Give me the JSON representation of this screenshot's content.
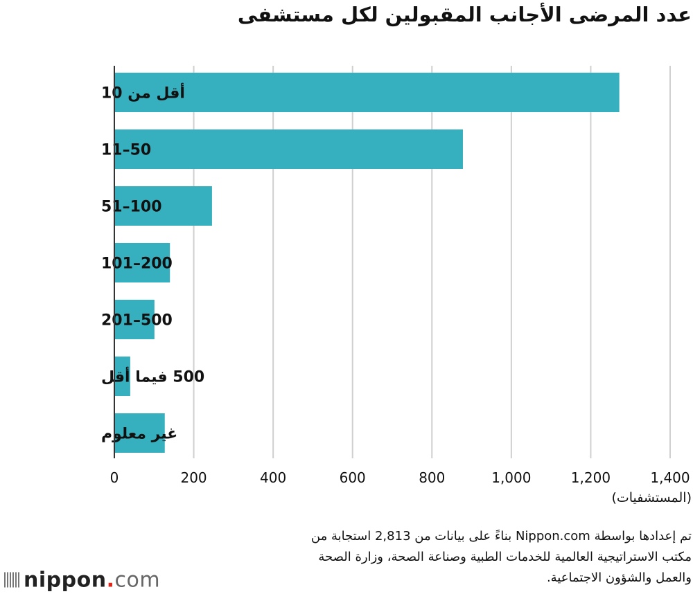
{
  "title": "عدد المرضى الأجانب المقبولين لكل مستشفى",
  "chart_data": {
    "type": "bar",
    "orientation": "horizontal",
    "categories": [
      "أقل من 10",
      "50–11",
      "100–51",
      "200–101",
      "500–201",
      "500 فيما أقل",
      "غير معلوم"
    ],
    "values": [
      1272,
      878,
      246,
      140,
      101,
      40,
      127
    ],
    "xlabel": "(المستشفيات)",
    "xlim": [
      0,
      1400
    ],
    "xticks": [
      0,
      200,
      400,
      600,
      800,
      1000,
      1200,
      1400
    ],
    "xtick_labels": [
      "0",
      "200",
      "400",
      "600",
      "800",
      "1,000",
      "1,200",
      "1,400"
    ],
    "grid": "vertical",
    "bar_color": "#36b0be"
  },
  "note_lines": [
    "تم إعدادها بواسطة Nippon.com بناءً على بيانات من 2,813 استجابة من",
    "مكتب الاستراتيجية العالمية للخدمات الطبية وصناعة الصحة، وزارة الصحة",
    "والعمل والشؤون الاجتماعية."
  ],
  "logo": {
    "name": "nippon",
    "dot": ".",
    "suffix": "com"
  }
}
